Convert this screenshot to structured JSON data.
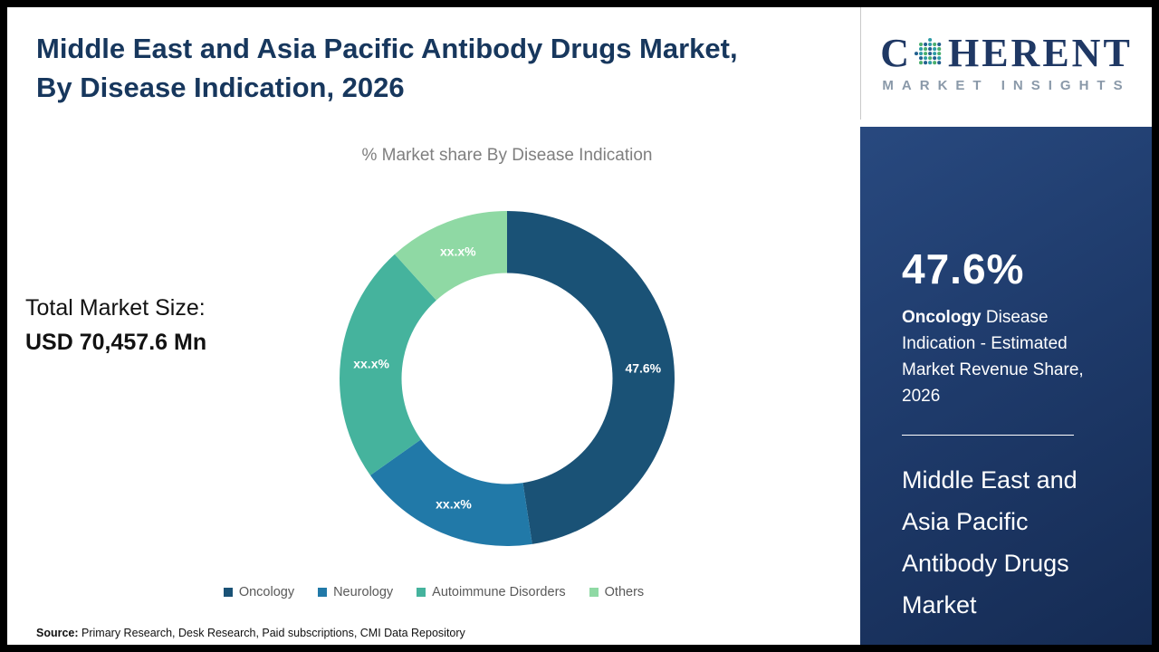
{
  "page": {
    "title": "Middle East and Asia Pacific Antibody Drugs Market, By Disease Indication, 2026",
    "total_market_label": "Total Market Size:",
    "total_market_value": "USD 70,457.6 Mn",
    "source_label": "Source:",
    "source_text": " Primary Research, Desk Research, Paid subscriptions, CMI Data Repository"
  },
  "logo": {
    "brand_c": "C",
    "brand_rest": "HERENT",
    "brand_sub": "MARKET INSIGHTS"
  },
  "sidebar": {
    "stat_value": "47.6%",
    "stat_bold": "Oncology",
    "stat_rest": " Disease Indication - Estimated Market Revenue Share, 2026",
    "market_name": "Middle East and Asia Pacific Antibody Drugs Market"
  },
  "chart_data": {
    "type": "pie",
    "subtype": "donut",
    "title": "% Market share By Disease Indication",
    "categories": [
      "Oncology",
      "Neurology",
      "Autoimmune Disorders",
      "Others"
    ],
    "values": [
      47.6,
      17.6,
      23.1,
      11.7
    ],
    "labels": [
      "47.6%",
      "xx.x%",
      "xx.x%",
      "xx.x%"
    ],
    "colors": [
      "#1a5276",
      "#2179a8",
      "#45b39d",
      "#8fd9a4"
    ],
    "start_angle_deg": 0,
    "inner_radius_ratio": 0.63,
    "legend_position": "bottom"
  }
}
